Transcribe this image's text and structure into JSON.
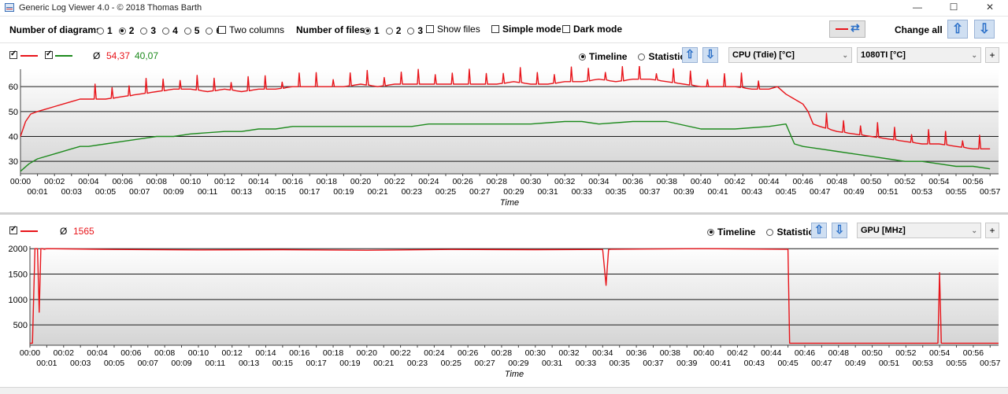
{
  "window": {
    "title": "Generic Log Viewer 4.0 - © 2018 Thomas Barth",
    "minimize": "—",
    "maximize": "☐",
    "close": "✕"
  },
  "toolbar": {
    "diagrams_label": "Number of diagrams",
    "diagram_options": [
      "1",
      "2",
      "3",
      "4",
      "5",
      "6"
    ],
    "diagrams_selected": "2",
    "two_columns": "Two columns",
    "files_label": "Number of files",
    "file_options": [
      "1",
      "2",
      "3"
    ],
    "files_selected": "1",
    "show_files": "Show files",
    "simple_mode": "Simple mode",
    "dark_mode": "Dark mode",
    "change_all": "Change all",
    "up_arrow": "⇧",
    "down_arrow": "⇩",
    "sync_icon": "⇄"
  },
  "colors": {
    "series1": "#e8141a",
    "series2": "#1d8a1d",
    "accent": "#2a6fc8"
  },
  "panel1": {
    "avg_symbol": "Ø",
    "avg_values": [
      "54,37",
      "40,07"
    ],
    "timeline": "Timeline",
    "statistic": "Statistic",
    "dropdown1": "CPU (Tdie) [°C]",
    "dropdown2": "1080TI [°C]",
    "plus": "+"
  },
  "panel2": {
    "avg_symbol": "Ø",
    "avg_value": "1565",
    "timeline": "Timeline",
    "statistic": "Statistic",
    "dropdown1": "GPU [MHz]",
    "plus": "+"
  },
  "chart_data": [
    {
      "type": "line",
      "xlabel": "Time",
      "ylabel": "",
      "ylim": [
        25,
        67
      ],
      "yticks": [
        30,
        40,
        50,
        60
      ],
      "x_unit": "minutes",
      "xlim": [
        0,
        57.5
      ],
      "x_tick_labels": [
        "00:00",
        "00:01",
        "00:02",
        "00:03",
        "00:04",
        "00:05",
        "00:06",
        "00:07",
        "00:08",
        "00:09",
        "00:10",
        "00:11",
        "00:12",
        "00:13",
        "00:14",
        "00:15",
        "00:16",
        "00:17",
        "00:18",
        "00:19",
        "00:20",
        "00:21",
        "00:22",
        "00:23",
        "00:24",
        "00:25",
        "00:26",
        "00:27",
        "00:28",
        "00:29",
        "00:30",
        "00:31",
        "00:32",
        "00:33",
        "00:34",
        "00:35",
        "00:36",
        "00:37",
        "00:38",
        "00:39",
        "00:40",
        "00:41",
        "00:42",
        "00:43",
        "00:44",
        "00:45",
        "00:46",
        "00:47",
        "00:48",
        "00:49",
        "00:50",
        "00:51",
        "00:52",
        "00:53",
        "00:54",
        "00:55",
        "00:56",
        "00:57"
      ],
      "grid": true,
      "series": [
        {
          "color": "#e8141a",
          "x": [
            0,
            0.3,
            0.6,
            1,
            1.5,
            2,
            2.5,
            3,
            3.5,
            4,
            5,
            6,
            7,
            8,
            9,
            10,
            11,
            12,
            13,
            14,
            15,
            16,
            17,
            18,
            19,
            20,
            21,
            22,
            23,
            24,
            25,
            26,
            27,
            28,
            29,
            30,
            31,
            32,
            33,
            34,
            35,
            36,
            37,
            38,
            39,
            40,
            41,
            42,
            43,
            44,
            44.5,
            45,
            45.5,
            46,
            46.3,
            46.6,
            47,
            48,
            49,
            50,
            51,
            52,
            53,
            54,
            55,
            56,
            57
          ],
          "y": [
            40,
            46,
            49,
            50,
            51,
            52,
            53,
            54,
            55,
            55,
            55,
            56,
            57,
            58,
            59,
            59,
            58,
            59,
            58,
            59,
            59,
            60,
            60,
            60,
            60,
            61,
            60,
            61,
            61,
            61,
            61,
            61,
            61,
            61,
            62,
            61,
            61,
            62,
            62,
            63,
            62,
            63,
            63,
            62,
            61,
            60,
            60,
            60,
            59,
            59,
            60,
            57,
            55,
            53,
            50,
            45,
            44,
            42,
            41,
            40,
            39,
            38,
            37,
            37,
            36,
            35,
            35
          ],
          "spikes": 6
        },
        {
          "color": "#1d8a1d",
          "x": [
            0,
            0.5,
            1,
            2,
            3,
            3.5,
            4,
            5,
            6,
            7,
            8,
            9,
            10,
            12,
            13,
            14,
            15,
            16,
            18,
            20,
            21,
            22,
            23,
            24,
            26,
            28,
            30,
            32,
            33,
            34,
            36,
            38,
            40,
            42,
            44,
            45,
            45.5,
            46,
            47,
            48,
            49,
            50,
            51,
            52,
            53,
            54,
            55,
            56,
            57
          ],
          "y": [
            26,
            29,
            31,
            33,
            35,
            36,
            36,
            37,
            38,
            39,
            40,
            40,
            41,
            42,
            42,
            43,
            43,
            44,
            44,
            44,
            44,
            44,
            44,
            45,
            45,
            45,
            45,
            46,
            46,
            45,
            46,
            46,
            43,
            43,
            44,
            45,
            37,
            36,
            35,
            34,
            33,
            32,
            31,
            30,
            30,
            29,
            28,
            28,
            27
          ]
        }
      ]
    },
    {
      "type": "line",
      "xlabel": "Time",
      "ylabel": "",
      "ylim": [
        100,
        2050
      ],
      "yticks": [
        500,
        1000,
        1500,
        2000
      ],
      "x_unit": "minutes",
      "xlim": [
        0,
        57.5
      ],
      "x_tick_labels": [
        "00:00",
        "00:01",
        "00:02",
        "00:03",
        "00:04",
        "00:05",
        "00:06",
        "00:07",
        "00:08",
        "00:09",
        "00:10",
        "00:11",
        "00:12",
        "00:13",
        "00:14",
        "00:15",
        "00:16",
        "00:17",
        "00:18",
        "00:19",
        "00:20",
        "00:21",
        "00:22",
        "00:23",
        "00:24",
        "00:25",
        "00:26",
        "00:27",
        "00:28",
        "00:29",
        "00:30",
        "00:31",
        "00:32",
        "00:33",
        "00:34",
        "00:35",
        "00:36",
        "00:37",
        "00:38",
        "00:39",
        "00:40",
        "00:41",
        "00:42",
        "00:43",
        "00:44",
        "00:45",
        "00:46",
        "00:47",
        "00:48",
        "00:49",
        "00:50",
        "00:51",
        "00:52",
        "00:53",
        "00:54",
        "00:55",
        "00:56",
        "00:57"
      ],
      "grid": true,
      "series": [
        {
          "color": "#e8141a",
          "x": [
            0,
            0.15,
            0.3,
            0.45,
            0.55,
            0.65,
            0.75,
            0.85,
            1,
            5,
            10,
            15,
            20,
            25,
            30,
            34,
            34.2,
            34.35,
            34.5,
            40,
            44.8,
            45,
            45.1,
            53.9,
            54.0,
            54.1,
            57.5
          ],
          "y": [
            140,
            140,
            2000,
            2000,
            750,
            2000,
            2000,
            1990,
            2000,
            1985,
            1975,
            1980,
            1970,
            1985,
            1980,
            1985,
            1280,
            1985,
            1990,
            2000,
            1990,
            1990,
            140,
            140,
            1530,
            140,
            140
          ]
        }
      ]
    }
  ]
}
